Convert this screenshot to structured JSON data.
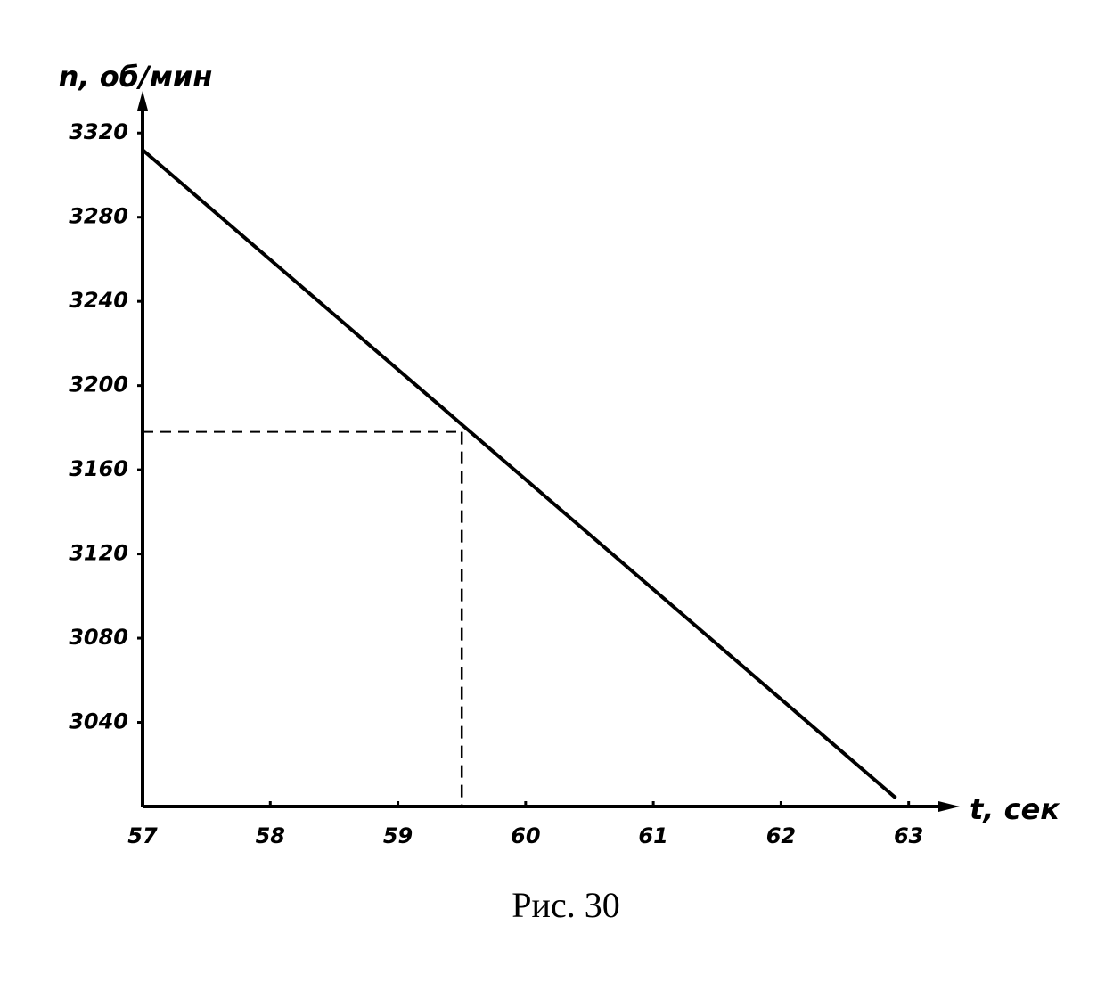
{
  "chart_data": {
    "type": "line",
    "caption": "Рис. 30",
    "xlabel": "t, сек",
    "ylabel": "n, об/мин",
    "x": [
      57,
      62.9
    ],
    "values": [
      3312,
      3004
    ],
    "color": "#000000",
    "xlim": [
      57,
      63.4
    ],
    "ylim": [
      3000,
      3340
    ],
    "xticks": [
      57,
      58,
      59,
      60,
      61,
      62,
      63
    ],
    "yticks": [
      3040,
      3080,
      3120,
      3160,
      3200,
      3240,
      3280,
      3320
    ],
    "guide": {
      "x": 59.5,
      "y": 3178
    },
    "grid": false
  }
}
